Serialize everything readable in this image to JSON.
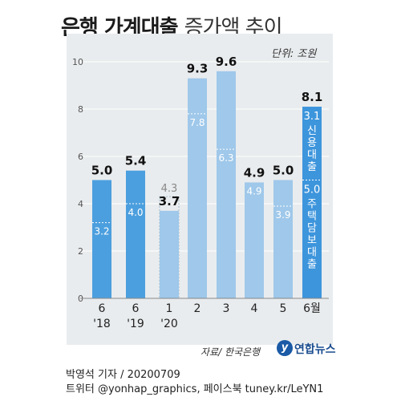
{
  "title": {
    "bold": "은행 가계대출",
    "light": "증가액 추이"
  },
  "unit": "단위: 조원",
  "source": "자료/ 한국은행",
  "logo": "연합뉴스",
  "byline": "박영석 기자 / 20200709",
  "social": "트위터 @yonhap_graphics, 페이스북 tuney.kr/LeYN1",
  "colors": {
    "bar_dark": "#4c9fde",
    "bar_light": "#9fc8ea",
    "bar_last": "#3d95dc",
    "prev_outline": "#9fb6c8",
    "panel": "#e9ecee"
  },
  "chart_data": {
    "type": "bar",
    "ylim": [
      0,
      10
    ],
    "yticks": [
      "0",
      "2",
      "4",
      "6",
      "8",
      "10"
    ],
    "categories": [
      "6\n'18",
      "6\n'19",
      "1\n'20",
      "2",
      "3",
      "4",
      "5",
      "6월"
    ],
    "values": [
      5.0,
      5.4,
      3.7,
      9.3,
      9.6,
      4.9,
      5.0,
      8.1
    ],
    "value_labels": [
      "5.0",
      "5.4",
      "3.7",
      "9.3",
      "9.6",
      "4.9",
      "5.0",
      "8.1"
    ],
    "mortgage": [
      3.2,
      4.0,
      null,
      7.8,
      6.3,
      4.9,
      3.9,
      5.0
    ],
    "mortgage_labels": [
      "3.2",
      "4.0",
      "",
      "7.8",
      "6.3",
      "4.9",
      "3.9",
      "5.0"
    ],
    "prev_outline": {
      "index": 2,
      "value": 4.3,
      "label": "4.3"
    },
    "last_bar_annotations": {
      "credit_value": "3.1",
      "credit_label": "신용대출",
      "mortgage_value": "5.0",
      "mortgage_label": "주택담보대출"
    }
  }
}
